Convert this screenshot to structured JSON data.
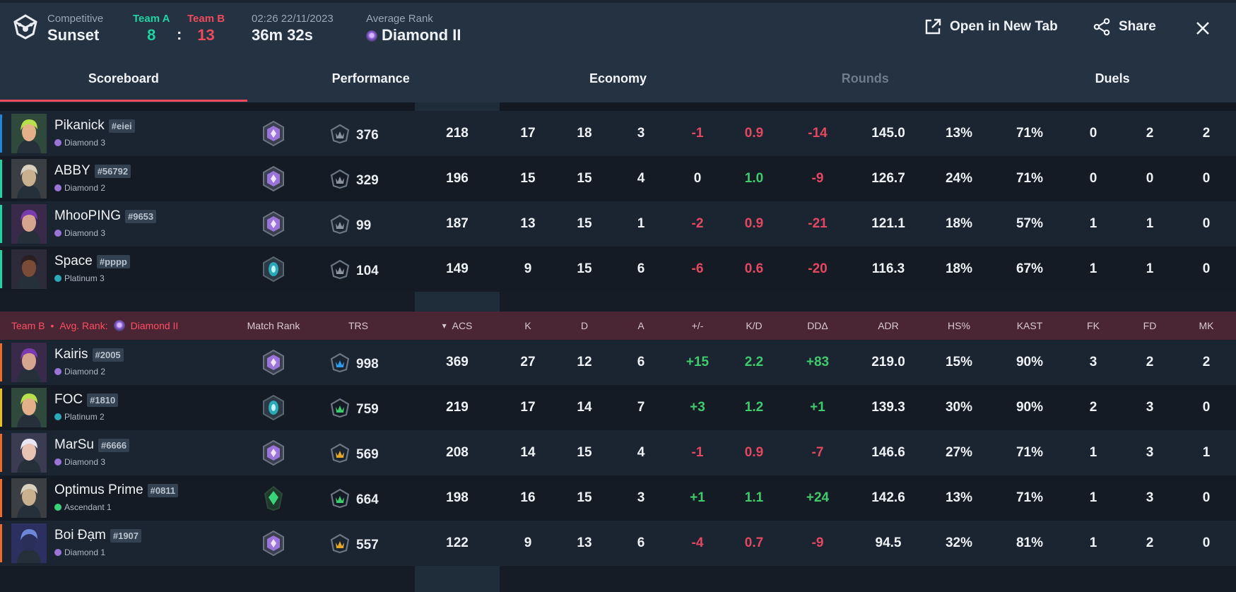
{
  "header": {
    "mode": "Competitive",
    "map": "Sunset",
    "team_a_label": "Team A",
    "team_a_score": "8",
    "team_b_label": "Team B",
    "team_b_score": "13",
    "score_separator": ":",
    "datetime": "02:26 22/11/2023",
    "duration": "36m 32s",
    "avg_rank_label": "Average Rank",
    "avg_rank": "Diamond II",
    "open_new_tab": "Open in New Tab",
    "share": "Share"
  },
  "tabs": [
    {
      "label": "Scoreboard",
      "active": true,
      "dim": false
    },
    {
      "label": "Performance",
      "active": false,
      "dim": false
    },
    {
      "label": "Economy",
      "active": false,
      "dim": false
    },
    {
      "label": "Rounds",
      "active": false,
      "dim": true
    },
    {
      "label": "Duels",
      "active": false,
      "dim": false
    }
  ],
  "team_b_header": {
    "team": "Team B",
    "bullet": "•",
    "avg_rank_label": "Avg. Rank:",
    "avg_rank": "Diamond II",
    "columns": [
      "Match Rank",
      "TRS",
      "ACS",
      "K",
      "D",
      "A",
      "+/-",
      "K/D",
      "DDΔ",
      "ADR",
      "HS%",
      "KAST",
      "FK",
      "FD",
      "MK"
    ],
    "sort_column": "ACS"
  },
  "colors": {
    "team_a": "#1fd3a3",
    "team_b": "#ee4a5e",
    "positive": "#3ecb6c",
    "negative": "#e44861"
  },
  "team_a_players": [
    {
      "name": "Pikanick",
      "tag": "#eiei",
      "rank": "Diamond 3",
      "trs": "376",
      "acs": "218",
      "k": "17",
      "d": "18",
      "a": "3",
      "pm": "-1",
      "kd": "0.9",
      "dd": "-14",
      "adr": "145.0",
      "hs": "13%",
      "kast": "71%",
      "fk": "0",
      "fd": "2",
      "mk": "2",
      "stripe": "#1f86d8"
    },
    {
      "name": "ABBY",
      "tag": "#56792",
      "rank": "Diamond 2",
      "trs": "329",
      "acs": "196",
      "k": "15",
      "d": "15",
      "a": "4",
      "pm": "0",
      "kd": "1.0",
      "dd": "-9",
      "adr": "126.7",
      "hs": "24%",
      "kast": "71%",
      "fk": "0",
      "fd": "0",
      "mk": "0",
      "stripe": "#1fd3a3"
    },
    {
      "name": "MhooPING",
      "tag": "#9653",
      "rank": "Diamond 3",
      "trs": "99",
      "acs": "187",
      "k": "13",
      "d": "15",
      "a": "1",
      "pm": "-2",
      "kd": "0.9",
      "dd": "-21",
      "adr": "121.1",
      "hs": "18%",
      "kast": "57%",
      "fk": "1",
      "fd": "1",
      "mk": "0",
      "stripe": "#1fd3a3"
    },
    {
      "name": "Space",
      "tag": "#pppp",
      "rank": "Platinum 3",
      "trs": "104",
      "acs": "149",
      "k": "9",
      "d": "15",
      "a": "6",
      "pm": "-6",
      "kd": "0.6",
      "dd": "-20",
      "adr": "116.3",
      "hs": "18%",
      "kast": "67%",
      "fk": "1",
      "fd": "1",
      "mk": "0",
      "stripe": "#1fd3a3"
    }
  ],
  "team_b_players": [
    {
      "name": "Kairis",
      "tag": "#2005",
      "rank": "Diamond 2",
      "trs": "998",
      "acs": "369",
      "k": "27",
      "d": "12",
      "a": "6",
      "pm": "+15",
      "kd": "2.2",
      "dd": "+83",
      "adr": "219.0",
      "hs": "15%",
      "kast": "90%",
      "fk": "3",
      "fd": "2",
      "mk": "2",
      "stripe": "#f06a2a"
    },
    {
      "name": "FOC",
      "tag": "#1810",
      "rank": "Platinum 2",
      "trs": "759",
      "acs": "219",
      "k": "17",
      "d": "14",
      "a": "7",
      "pm": "+3",
      "kd": "1.2",
      "dd": "+1",
      "adr": "139.3",
      "hs": "30%",
      "kast": "90%",
      "fk": "2",
      "fd": "3",
      "mk": "0",
      "stripe": "#e6c21a"
    },
    {
      "name": "MarSu",
      "tag": "#6666",
      "rank": "Diamond 3",
      "trs": "569",
      "acs": "208",
      "k": "14",
      "d": "15",
      "a": "4",
      "pm": "-1",
      "kd": "0.9",
      "dd": "-7",
      "adr": "146.6",
      "hs": "27%",
      "kast": "71%",
      "fk": "1",
      "fd": "3",
      "mk": "1",
      "stripe": "#f06a2a"
    },
    {
      "name": "Optimus Prime",
      "tag": "#0811",
      "rank": "Ascendant 1",
      "trs": "664",
      "acs": "198",
      "k": "16",
      "d": "15",
      "a": "3",
      "pm": "+1",
      "kd": "1.1",
      "dd": "+24",
      "adr": "142.6",
      "hs": "13%",
      "kast": "71%",
      "fk": "1",
      "fd": "3",
      "mk": "0",
      "stripe": "#f06a2a"
    },
    {
      "name": "Boi Đạm",
      "tag": "#1907",
      "rank": "Diamond 1",
      "trs": "557",
      "acs": "122",
      "k": "9",
      "d": "13",
      "a": "6",
      "pm": "-4",
      "kd": "0.7",
      "dd": "-9",
      "adr": "94.5",
      "hs": "32%",
      "kast": "81%",
      "fk": "1",
      "fd": "2",
      "mk": "0",
      "stripe": "#f06a2a"
    }
  ]
}
